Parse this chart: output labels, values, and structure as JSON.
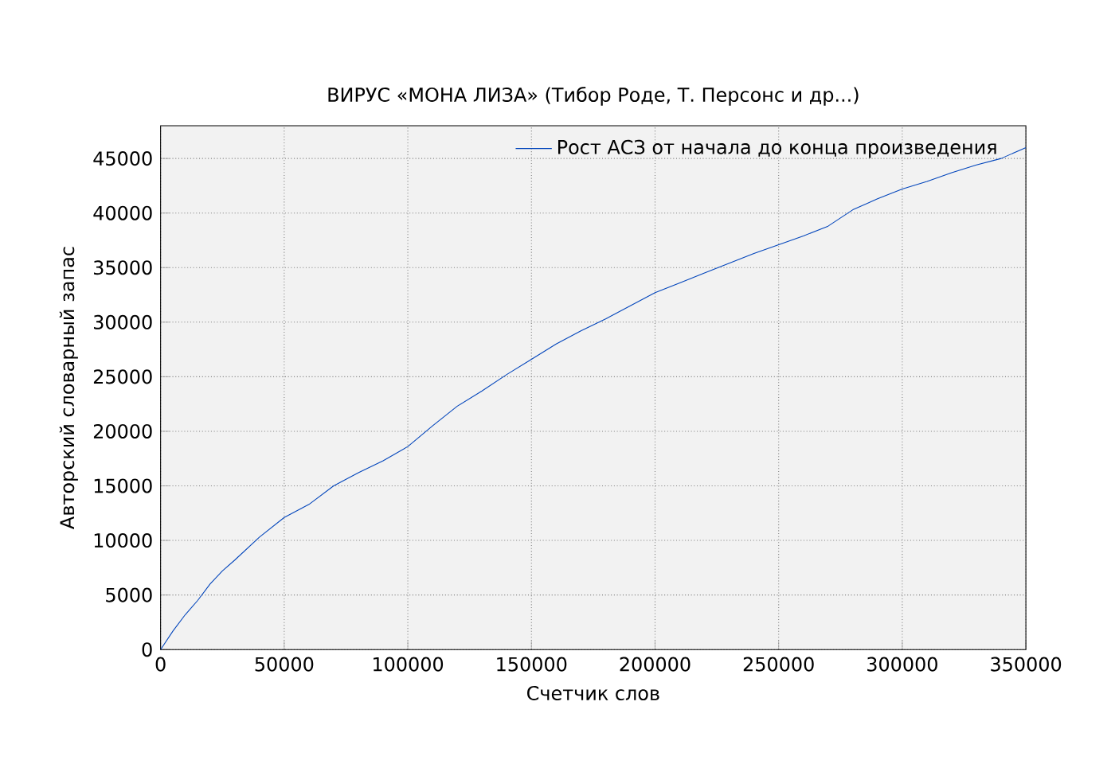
{
  "chart_data": {
    "type": "line",
    "title": "ВИРУС «МОНА ЛИЗА» (Тибор Роде, Т. Персонс и др...)",
    "xlabel": "Счетчик слов",
    "ylabel": "Авторский словарный запас",
    "x": [
      0,
      5000,
      10000,
      15000,
      20000,
      25000,
      30000,
      40000,
      50000,
      60000,
      70000,
      80000,
      90000,
      100000,
      110000,
      120000,
      130000,
      140000,
      150000,
      160000,
      170000,
      180000,
      190000,
      200000,
      210000,
      220000,
      230000,
      240000,
      250000,
      260000,
      270000,
      280000,
      290000,
      300000,
      310000,
      320000,
      330000,
      340000,
      350000
    ],
    "series": [
      {
        "name": "Рост АСЗ от начала до конца произведения",
        "color": "#0044bb",
        "values": [
          0,
          1700,
          3200,
          4500,
          6000,
          7200,
          8200,
          10300,
          12100,
          13300,
          15000,
          16200,
          17300,
          18600,
          20500,
          22300,
          23700,
          25200,
          26600,
          28000,
          29200,
          30300,
          31500,
          32700,
          33600,
          34500,
          35400,
          36300,
          37100,
          37900,
          38800,
          40300,
          41300,
          42200,
          42900,
          43700,
          44400,
          45000,
          46000
        ]
      }
    ],
    "xlim": [
      0,
      350000
    ],
    "ylim": [
      0,
      48000
    ],
    "xticks": [
      0,
      50000,
      100000,
      150000,
      200000,
      250000,
      300000,
      350000
    ],
    "yticks": [
      0,
      5000,
      10000,
      15000,
      20000,
      25000,
      30000,
      35000,
      40000,
      45000
    ],
    "grid": true,
    "legend": "top right"
  }
}
